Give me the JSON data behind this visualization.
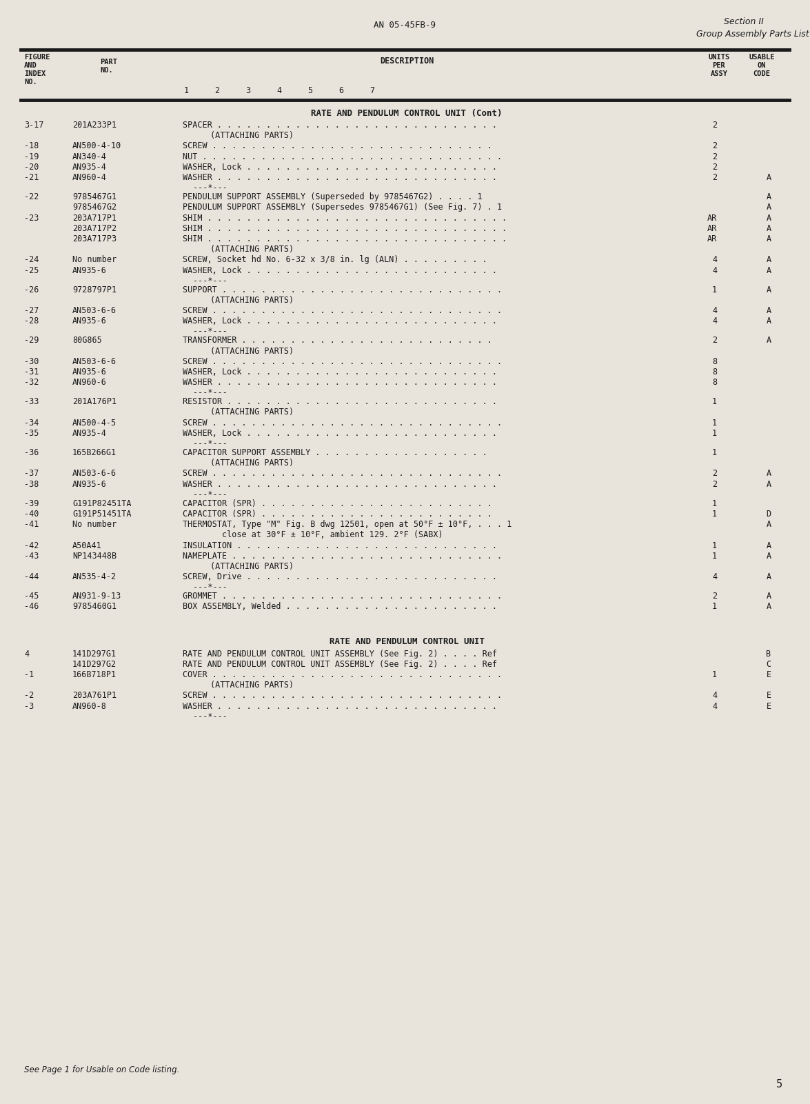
{
  "page_header_center": "AN 05-45FB-9",
  "page_header_right1": "Section II",
  "page_header_right2": "Group Assembly Parts List",
  "page_number": "5",
  "section1_title": "RATE AND PENDULUM CONTROL UNIT (Cont)",
  "section2_title": "RATE AND PENDULUM CONTROL UNIT",
  "bg_color": "#e8e4dc",
  "text_color": "#1a1a1a",
  "rows": [
    {
      "fig": "3-17",
      "part": "201A233P1",
      "desc": "SPACER . . . . . . . . . . . . . . . . . . . . . . . . . . . . .",
      "units": "2",
      "code": ""
    },
    {
      "fig": "",
      "part": "",
      "desc": "(ATTACHING PARTS)",
      "units": "",
      "code": "",
      "indent": true
    },
    {
      "fig": "-18",
      "part": "AN500-4-10",
      "desc": "SCREW . . . . . . . . . . . . . . . . . . . . . . . . . . . . .",
      "units": "2",
      "code": ""
    },
    {
      "fig": "-19",
      "part": "AN340-4",
      "desc": "NUT . . . . . . . . . . . . . . . . . . . . . . . . . . . . . . .",
      "units": "2",
      "code": ""
    },
    {
      "fig": "-20",
      "part": "AN935-4",
      "desc": "WASHER, Lock . . . . . . . . . . . . . . . . . . . . . . . . . .",
      "units": "2",
      "code": ""
    },
    {
      "fig": "-21",
      "part": "AN960-4",
      "desc": "WASHER . . . . . . . . . . . . . . . . . . . . . . . . . . . . .",
      "units": "2",
      "code": "A"
    },
    {
      "fig": "",
      "part": "",
      "desc": "---*---",
      "units": "",
      "code": "",
      "separator": true
    },
    {
      "fig": "-22",
      "part": "9785467G1",
      "desc": "PENDULUM SUPPORT ASSEMBLY (Superseded by 9785467G2) . . . . 1",
      "units": "",
      "code": "A"
    },
    {
      "fig": "",
      "part": "9785467G2",
      "desc": "PENDULUM SUPPORT ASSEMBLY (Supersedes 9785467G1) (See Fig. 7) . 1",
      "units": "",
      "code": "A"
    },
    {
      "fig": "-23",
      "part": "203A717P1",
      "desc": "SHIM . . . . . . . . . . . . . . . . . . . . . . . . . . . . . . .",
      "units": "AR",
      "code": "A"
    },
    {
      "fig": "",
      "part": "203A717P2",
      "desc": "SHIM . . . . . . . . . . . . . . . . . . . . . . . . . . . . . . .",
      "units": "AR",
      "code": "A"
    },
    {
      "fig": "",
      "part": "203A717P3",
      "desc": "SHIM . . . . . . . . . . . . . . . . . . . . . . . . . . . . . . .",
      "units": "AR",
      "code": "A"
    },
    {
      "fig": "",
      "part": "",
      "desc": "(ATTACHING PARTS)",
      "units": "",
      "code": "",
      "indent": true
    },
    {
      "fig": "-24",
      "part": "No number",
      "desc": "SCREW, Socket hd No. 6-32 x 3/8 in. lg (ALN) . . . . . . . . .",
      "units": "4",
      "code": "A"
    },
    {
      "fig": "-25",
      "part": "AN935-6",
      "desc": "WASHER, Lock . . . . . . . . . . . . . . . . . . . . . . . . . .",
      "units": "4",
      "code": "A"
    },
    {
      "fig": "",
      "part": "",
      "desc": "---*---",
      "units": "",
      "code": "",
      "separator": true
    },
    {
      "fig": "-26",
      "part": "9728797P1",
      "desc": "SUPPORT . . . . . . . . . . . . . . . . . . . . . . . . . . . . .",
      "units": "1",
      "code": "A"
    },
    {
      "fig": "",
      "part": "",
      "desc": "(ATTACHING PARTS)",
      "units": "",
      "code": "",
      "indent": true
    },
    {
      "fig": "-27",
      "part": "AN503-6-6",
      "desc": "SCREW . . . . . . . . . . . . . . . . . . . . . . . . . . . . . .",
      "units": "4",
      "code": "A"
    },
    {
      "fig": "-28",
      "part": "AN935-6",
      "desc": "WASHER, Lock . . . . . . . . . . . . . . . . . . . . . . . . . .",
      "units": "4",
      "code": "A"
    },
    {
      "fig": "",
      "part": "",
      "desc": "---*---",
      "units": "",
      "code": "",
      "separator": true
    },
    {
      "fig": "-29",
      "part": "80G865",
      "desc": "TRANSFORMER . . . . . . . . . . . . . . . . . . . . . . . . . .",
      "units": "2",
      "code": "A"
    },
    {
      "fig": "",
      "part": "",
      "desc": "(ATTACHING PARTS)",
      "units": "",
      "code": "",
      "indent": true
    },
    {
      "fig": "-30",
      "part": "AN503-6-6",
      "desc": "SCREW . . . . . . . . . . . . . . . . . . . . . . . . . . . . . .",
      "units": "8",
      "code": ""
    },
    {
      "fig": "-31",
      "part": "AN935-6",
      "desc": "WASHER, Lock . . . . . . . . . . . . . . . . . . . . . . . . . .",
      "units": "8",
      "code": ""
    },
    {
      "fig": "-32",
      "part": "AN960-6",
      "desc": "WASHER . . . . . . . . . . . . . . . . . . . . . . . . . . . . .",
      "units": "8",
      "code": ""
    },
    {
      "fig": "",
      "part": "",
      "desc": "---*---",
      "units": "",
      "code": "",
      "separator": true
    },
    {
      "fig": "-33",
      "part": "201A176P1",
      "desc": "RESISTOR . . . . . . . . . . . . . . . . . . . . . . . . . . . .",
      "units": "1",
      "code": ""
    },
    {
      "fig": "",
      "part": "",
      "desc": "(ATTACHING PARTS)",
      "units": "",
      "code": "",
      "indent": true
    },
    {
      "fig": "-34",
      "part": "AN500-4-5",
      "desc": "SCREW . . . . . . . . . . . . . . . . . . . . . . . . . . . . . .",
      "units": "1",
      "code": ""
    },
    {
      "fig": "-35",
      "part": "AN935-4",
      "desc": "WASHER, Lock . . . . . . . . . . . . . . . . . . . . . . . . . .",
      "units": "1",
      "code": ""
    },
    {
      "fig": "",
      "part": "",
      "desc": "---*---",
      "units": "",
      "code": "",
      "separator": true
    },
    {
      "fig": "-36",
      "part": "165B266G1",
      "desc": "CAPACITOR SUPPORT ASSEMBLY . . . . . . . . . . . . . . . . . .",
      "units": "1",
      "code": ""
    },
    {
      "fig": "",
      "part": "",
      "desc": "(ATTACHING PARTS)",
      "units": "",
      "code": "",
      "indent": true
    },
    {
      "fig": "-37",
      "part": "AN503-6-6",
      "desc": "SCREW . . . . . . . . . . . . . . . . . . . . . . . . . . . . . .",
      "units": "2",
      "code": "A"
    },
    {
      "fig": "-38",
      "part": "AN935-6",
      "desc": "WASHER . . . . . . . . . . . . . . . . . . . . . . . . . . . . .",
      "units": "2",
      "code": "A"
    },
    {
      "fig": "",
      "part": "",
      "desc": "---*---",
      "units": "",
      "code": "",
      "separator": true
    },
    {
      "fig": "-39",
      "part": "G191P82451TA",
      "desc": "CAPACITOR (SPR) . . . . . . . . . . . . . . . . . . . . . . . .",
      "units": "1",
      "code": ""
    },
    {
      "fig": "-40",
      "part": "G191P51451TA",
      "desc": "CAPACITOR (SPR) . . . . . . . . . . . . . . . . . . . . . . . .",
      "units": "1",
      "code": "D"
    },
    {
      "fig": "-41",
      "part": "No number",
      "desc": "THERMOSTAT, Type \"M\" Fig. B dwg 12501, open at 50°F ± 10°F, . . . 1",
      "units": "",
      "code": "A"
    },
    {
      "fig": "",
      "part": "",
      "desc": "        close at 30°F ± 10°F, ambient 129. 2°F (SABX)",
      "units": "",
      "code": ""
    },
    {
      "fig": "-42",
      "part": "A50A41",
      "desc": "INSULATION . . . . . . . . . . . . . . . . . . . . . . . . . . .",
      "units": "1",
      "code": "A"
    },
    {
      "fig": "-43",
      "part": "NP143448B",
      "desc": "NAMEPLATE . . . . . . . . . . . . . . . . . . . . . . . . . . . .",
      "units": "1",
      "code": "A"
    },
    {
      "fig": "",
      "part": "",
      "desc": "(ATTACHING PARTS)",
      "units": "",
      "code": "",
      "indent": true
    },
    {
      "fig": "-44",
      "part": "AN535-4-2",
      "desc": "SCREW, Drive . . . . . . . . . . . . . . . . . . . . . . . . . .",
      "units": "4",
      "code": "A"
    },
    {
      "fig": "",
      "part": "",
      "desc": "---*---",
      "units": "",
      "code": "",
      "separator": true
    },
    {
      "fig": "-45",
      "part": "AN931-9-13",
      "desc": "GROMMET . . . . . . . . . . . . . . . . . . . . . . . . . . . . .",
      "units": "2",
      "code": "A"
    },
    {
      "fig": "-46",
      "part": "9785460G1",
      "desc": "BOX ASSEMBLY, Welded . . . . . . . . . . . . . . . . . . . . . .",
      "units": "1",
      "code": "A"
    }
  ],
  "rows2": [
    {
      "fig": "4",
      "part": "141D297G1",
      "desc": "RATE AND PENDULUM CONTROL UNIT ASSEMBLY (See Fig. 2) . . . . Ref",
      "units": "",
      "code": "B"
    },
    {
      "fig": "",
      "part": "141D297G2",
      "desc": "RATE AND PENDULUM CONTROL UNIT ASSEMBLY (See Fig. 2) . . . . Ref",
      "units": "",
      "code": "C"
    },
    {
      "fig": "-1",
      "part": "166B718P1",
      "desc": "COVER . . . . . . . . . . . . . . . . . . . . . . . . . . . . . .",
      "units": "1",
      "code": "E"
    },
    {
      "fig": "",
      "part": "",
      "desc": "(ATTACHING PARTS)",
      "units": "",
      "code": "",
      "indent": true
    },
    {
      "fig": "-2",
      "part": "203A761P1",
      "desc": "SCREW . . . . . . . . . . . . . . . . . . . . . . . . . . . . . .",
      "units": "4",
      "code": "E"
    },
    {
      "fig": "-3",
      "part": "AN960-8",
      "desc": "WASHER . . . . . . . . . . . . . . . . . . . . . . . . . . . . .",
      "units": "4",
      "code": "E"
    },
    {
      "fig": "",
      "part": "",
      "desc": "---*---",
      "units": "",
      "code": "",
      "separator": true
    }
  ],
  "footer": "See Page 1 for Usable on Code listing."
}
